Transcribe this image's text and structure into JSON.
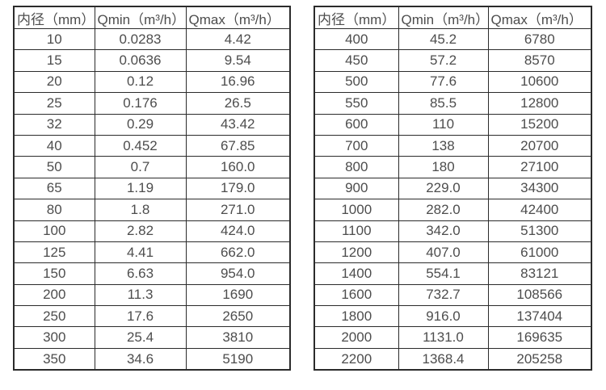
{
  "page": {
    "background": "#ffffff",
    "text_color": "#4d4d4d",
    "border_color": "#2b2b2b",
    "description": "Water flow meter specification tables: inner diameter vs minimum and maximum flow rates"
  },
  "tables": [
    {
      "name": "flow-table-left",
      "headers": [
        "内径（mm）",
        "Qmin（m³/h）",
        "Qmax（m³/h）"
      ],
      "rows": [
        [
          "10",
          "0.0283",
          "4.42"
        ],
        [
          "15",
          "0.0636",
          "9.54"
        ],
        [
          "20",
          "0.12",
          "16.96"
        ],
        [
          "25",
          "0.176",
          "26.5"
        ],
        [
          "32",
          "0.29",
          "43.42"
        ],
        [
          "40",
          "0.452",
          "67.85"
        ],
        [
          "50",
          "0.7",
          "160.0"
        ],
        [
          "65",
          "1.19",
          "179.0"
        ],
        [
          "80",
          "1.8",
          "271.0"
        ],
        [
          "100",
          "2.82",
          "424.0"
        ],
        [
          "125",
          "4.41",
          "662.0"
        ],
        [
          "150",
          "6.63",
          "954.0"
        ],
        [
          "200",
          "11.3",
          "1690"
        ],
        [
          "250",
          "17.6",
          "2650"
        ],
        [
          "300",
          "25.4",
          "3810"
        ],
        [
          "350",
          "34.6",
          "5190"
        ]
      ]
    },
    {
      "name": "flow-table-right",
      "headers": [
        "内径（mm）",
        "Qmin（m³/h）",
        "Qmax（m³/h）"
      ],
      "rows": [
        [
          "400",
          "45.2",
          "6780"
        ],
        [
          "450",
          "57.2",
          "8570"
        ],
        [
          "500",
          "77.6",
          "10600"
        ],
        [
          "550",
          "85.5",
          "12800"
        ],
        [
          "600",
          "110",
          "15200"
        ],
        [
          "700",
          "138",
          "20700"
        ],
        [
          "800",
          "180",
          "27100"
        ],
        [
          "900",
          "229.0",
          "34300"
        ],
        [
          "1000",
          "282.0",
          "42400"
        ],
        [
          "1100",
          "342.0",
          "51300"
        ],
        [
          "1200",
          "407.0",
          "61000"
        ],
        [
          "1400",
          "554.1",
          "83121"
        ],
        [
          "1600",
          "732.7",
          "108566"
        ],
        [
          "1800",
          "916.0",
          "137404"
        ],
        [
          "2000",
          "1131.0",
          "169635"
        ],
        [
          "2200",
          "1368.4",
          "205258"
        ]
      ]
    }
  ]
}
